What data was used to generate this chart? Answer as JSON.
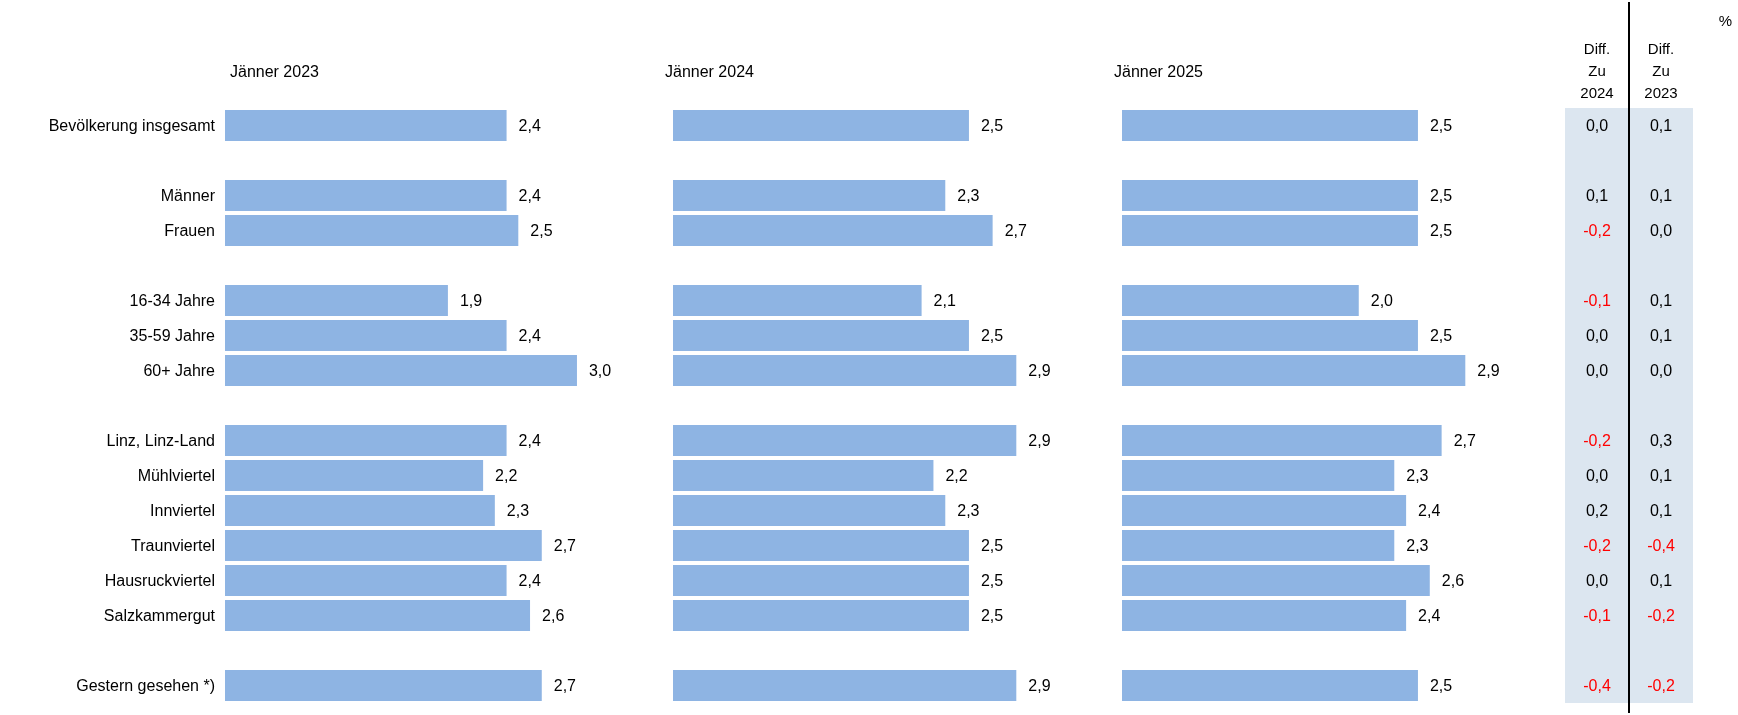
{
  "chart_data": [
    {
      "type": "bar",
      "orientation": "horizontal",
      "title": "Jänner 2023",
      "tick_labels": "y",
      "color": "#8eb4e3",
      "categories": [
        "Bevölkerung insgesamt",
        null,
        "Männer",
        "Frauen",
        null,
        "16-34 Jahre",
        "35-59 Jahre",
        "60+ Jahre",
        null,
        "Linz, Linz-Land",
        "Mühlviertel",
        "Innviertel",
        "Traunviertel",
        "Hausruckviertel",
        "Salzkammergut",
        null,
        "Gestern gesehen *)"
      ],
      "values": [
        2.4,
        null,
        2.4,
        2.5,
        null,
        1.9,
        2.4,
        3.0,
        null,
        2.4,
        2.2,
        2.3,
        2.7,
        2.4,
        2.6,
        null,
        2.7
      ],
      "value_labels": [
        "2,4",
        null,
        "2,4",
        "2,5",
        null,
        "1,9",
        "2,4",
        "3,0",
        null,
        "2,4",
        "2,2",
        "2,3",
        "2,7",
        "2,4",
        "2,6",
        null,
        "2,7"
      ]
    },
    {
      "type": "bar",
      "orientation": "horizontal",
      "title": "Jänner 2024",
      "color": "#8eb4e3",
      "categories": [
        null,
        null,
        null,
        null,
        null,
        null,
        null,
        null,
        null,
        null,
        null,
        null,
        null,
        null,
        null,
        null,
        null
      ],
      "values": [
        2.5,
        null,
        2.3,
        2.7,
        null,
        2.1,
        2.5,
        2.9,
        null,
        2.9,
        2.2,
        2.3,
        2.5,
        2.5,
        2.5,
        null,
        2.9
      ],
      "value_labels": [
        "2,5",
        null,
        "2,3",
        "2,7",
        null,
        "2,1",
        "2,5",
        "2,9",
        null,
        "2,9",
        "2,2",
        "2,3",
        "2,5",
        "2,5",
        "2,5",
        null,
        "2,9"
      ]
    },
    {
      "type": "bar",
      "orientation": "horizontal",
      "title": "Jänner 2025",
      "color": "#8eb4e3",
      "categories": [
        null,
        null,
        null,
        null,
        null,
        null,
        null,
        null,
        null,
        null,
        null,
        null,
        null,
        null,
        null,
        null,
        null
      ],
      "values": [
        2.5,
        null,
        2.5,
        2.5,
        null,
        2.0,
        2.5,
        2.9,
        null,
        2.7,
        2.3,
        2.4,
        2.3,
        2.6,
        2.4,
        null,
        2.5
      ],
      "value_labels": [
        "2,5",
        null,
        "2,5",
        "2,5",
        null,
        "2,0",
        "2,5",
        "2,9",
        null,
        "2,7",
        "2,3",
        "2,4",
        "2,3",
        "2,6",
        "2,4",
        null,
        "2,5"
      ]
    },
    {
      "type": "other",
      "color": "#dce6f0",
      "annotations": [
        "%"
      ],
      "categories": [
        "Diff. Zu 2024",
        "Diff. Zu 2023"
      ],
      "cell_labels": [
        [
          "0,0",
          "0,1"
        ],
        null,
        [
          "0,1",
          "0,1"
        ],
        [
          "-0,2",
          "0,0"
        ],
        null,
        [
          "-0,1",
          "0,1"
        ],
        [
          "0,0",
          "0,1"
        ],
        [
          "0,0",
          "0,0"
        ],
        null,
        [
          "-0,2",
          "0,3"
        ],
        [
          "0,0",
          "0,1"
        ],
        [
          "0,2",
          "0,1"
        ],
        [
          "-0,2",
          "-0,4"
        ],
        [
          "0,0",
          "0,1"
        ],
        [
          "-0,1",
          "-0,2"
        ],
        null,
        [
          "-0,4",
          "-0,2"
        ]
      ]
    }
  ]
}
